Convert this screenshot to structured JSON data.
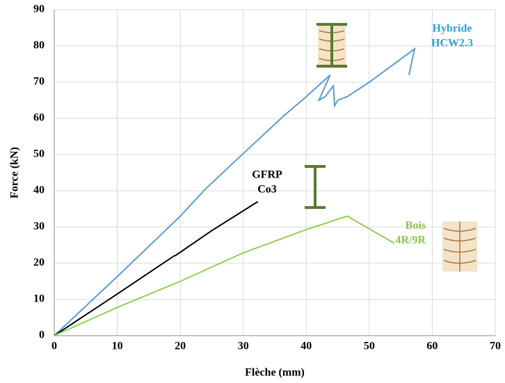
{
  "chart_data": {
    "type": "line",
    "x_label": "Flèche (mm)",
    "y_label": "Force (kN)",
    "xlim": [
      0,
      70
    ],
    "xticks": [
      0,
      10,
      20,
      30,
      40,
      50,
      60,
      70
    ],
    "ylim": [
      0,
      90
    ],
    "yticks": [
      0,
      10,
      20,
      30,
      40,
      50,
      60,
      70,
      80,
      90
    ],
    "grid": true,
    "series": [
      {
        "label": [
          "Hybride",
          "HCW2.3"
        ],
        "color": "#5b9bd5",
        "label_color": "#2e9fd9",
        "x": [
          0,
          10,
          20,
          24,
          30,
          36,
          36.3,
          40,
          43.8,
          42,
          42.5,
          43,
          44.3,
          44.5,
          45,
          46.5,
          50,
          57.2,
          56.3
        ],
        "values": [
          0,
          16.3,
          33,
          40.5,
          50.3,
          60,
          60.5,
          66,
          72,
          65,
          65.5,
          66,
          69,
          63.5,
          65,
          66,
          70,
          79.2,
          72
        ]
      },
      {
        "label": [
          "GFRP",
          "Co3"
        ],
        "color": "#000000",
        "label_color": "#000000",
        "x": [
          0,
          10,
          19,
          19.3,
          25,
          32.3
        ],
        "values": [
          0,
          11.5,
          22,
          22.2,
          29,
          37
        ]
      },
      {
        "label": [
          "Bois",
          "4R/9R"
        ],
        "color": "#92d050",
        "label_color": "#8cc152",
        "x": [
          0,
          10,
          20,
          29.5,
          30.2,
          40,
          46.5,
          54
        ],
        "values": [
          0,
          7.8,
          15,
          22.5,
          23,
          29.3,
          33,
          25.5
        ]
      }
    ]
  }
}
